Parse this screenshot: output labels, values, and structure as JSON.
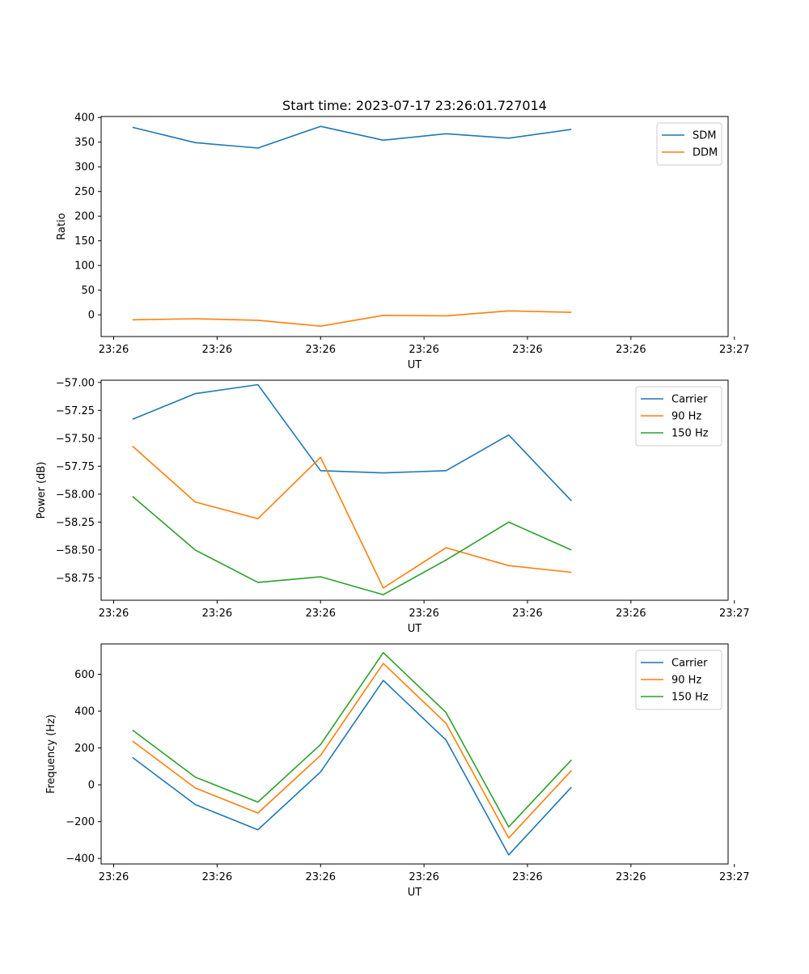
{
  "chart_data": [
    {
      "type": "line",
      "title": "Start time: 2023-07-17 23:26:01.727014",
      "xlabel": "UT",
      "ylabel": "Ratio",
      "xlim": [
        -0.5,
        9.5
      ],
      "ylim": [
        -44,
        402
      ],
      "x_ticks": [
        {
          "x": -0.3,
          "label": "23:26"
        },
        {
          "x": 1.35,
          "label": "23:26"
        },
        {
          "x": 3.0,
          "label": "23:26"
        },
        {
          "x": 4.65,
          "label": "23:26"
        },
        {
          "x": 6.3,
          "label": "23:26"
        },
        {
          "x": 7.95,
          "label": "23:26"
        },
        {
          "x": 9.6,
          "label": "23:27"
        }
      ],
      "y_ticks": [
        400,
        350,
        300,
        250,
        200,
        150,
        100,
        50,
        0
      ],
      "y_tick_labels": [
        "400",
        "350",
        "300",
        "250",
        "200",
        "150",
        "100",
        "50",
        "0"
      ],
      "legend_position": "top-right",
      "x": [
        0,
        1,
        2,
        3,
        4,
        5,
        6,
        7
      ],
      "series": [
        {
          "name": "SDM",
          "color": "#1f77b4",
          "values": [
            380,
            349,
            338,
            382,
            354,
            367,
            358,
            376
          ]
        },
        {
          "name": "DDM",
          "color": "#ff7f0e",
          "values": [
            -10,
            -8,
            -11,
            -23,
            -1,
            -2,
            8,
            5
          ]
        }
      ]
    },
    {
      "type": "line",
      "title": "",
      "xlabel": "UT",
      "ylabel": "Power (dB)",
      "xlim": [
        -0.5,
        9.5
      ],
      "ylim": [
        -58.95,
        -56.98
      ],
      "x_ticks": [
        {
          "x": -0.3,
          "label": "23:26"
        },
        {
          "x": 1.35,
          "label": "23:26"
        },
        {
          "x": 3.0,
          "label": "23:26"
        },
        {
          "x": 4.65,
          "label": "23:26"
        },
        {
          "x": 6.3,
          "label": "23:26"
        },
        {
          "x": 7.95,
          "label": "23:26"
        },
        {
          "x": 9.6,
          "label": "23:27"
        }
      ],
      "y_ticks": [
        -57.0,
        -57.25,
        -57.5,
        -57.75,
        -58.0,
        -58.25,
        -58.5,
        -58.75
      ],
      "y_tick_labels": [
        "−57.00",
        "−57.25",
        "−57.50",
        "−57.75",
        "−58.00",
        "−58.25",
        "−58.50",
        "−58.75"
      ],
      "legend_position": "top-right",
      "x": [
        0,
        1,
        2,
        3,
        4,
        5,
        6,
        7
      ],
      "series": [
        {
          "name": "Carrier",
          "color": "#1f77b4",
          "values": [
            -57.33,
            -57.1,
            -57.02,
            -57.79,
            -57.81,
            -57.79,
            -57.47,
            -58.06
          ]
        },
        {
          "name": "90 Hz",
          "color": "#ff7f0e",
          "values": [
            -57.57,
            -58.07,
            -58.22,
            -57.67,
            -58.84,
            -58.48,
            -58.64,
            -58.7
          ]
        },
        {
          "name": "150 Hz",
          "color": "#2ca02c",
          "values": [
            -58.02,
            -58.5,
            -58.79,
            -58.74,
            -58.9,
            -58.59,
            -58.25,
            -58.5
          ]
        }
      ]
    },
    {
      "type": "line",
      "title": "",
      "xlabel": "UT",
      "ylabel": "Frequency (Hz)",
      "xlim": [
        -0.5,
        9.5
      ],
      "ylim": [
        -430,
        765
      ],
      "x_ticks": [
        {
          "x": -0.3,
          "label": "23:26"
        },
        {
          "x": 1.35,
          "label": "23:26"
        },
        {
          "x": 3.0,
          "label": "23:26"
        },
        {
          "x": 4.65,
          "label": "23:26"
        },
        {
          "x": 6.3,
          "label": "23:26"
        },
        {
          "x": 7.95,
          "label": "23:26"
        },
        {
          "x": 9.6,
          "label": "23:27"
        }
      ],
      "y_ticks": [
        600,
        400,
        200,
        0,
        -200,
        -400
      ],
      "y_tick_labels": [
        "600",
        "400",
        "200",
        "0",
        "−200",
        "−400"
      ],
      "legend_position": "top-right",
      "x": [
        0,
        1,
        2,
        3,
        4,
        5,
        6,
        7
      ],
      "series": [
        {
          "name": "Carrier",
          "color": "#1f77b4",
          "values": [
            148,
            -107,
            -244,
            70,
            567,
            243,
            -381,
            -13
          ]
        },
        {
          "name": "90 Hz",
          "color": "#ff7f0e",
          "values": [
            238,
            -17,
            -153,
            160,
            659,
            334,
            -289,
            77
          ]
        },
        {
          "name": "150 Hz",
          "color": "#2ca02c",
          "values": [
            297,
            42,
            -94,
            219,
            718,
            393,
            -229,
            135
          ]
        }
      ]
    }
  ]
}
